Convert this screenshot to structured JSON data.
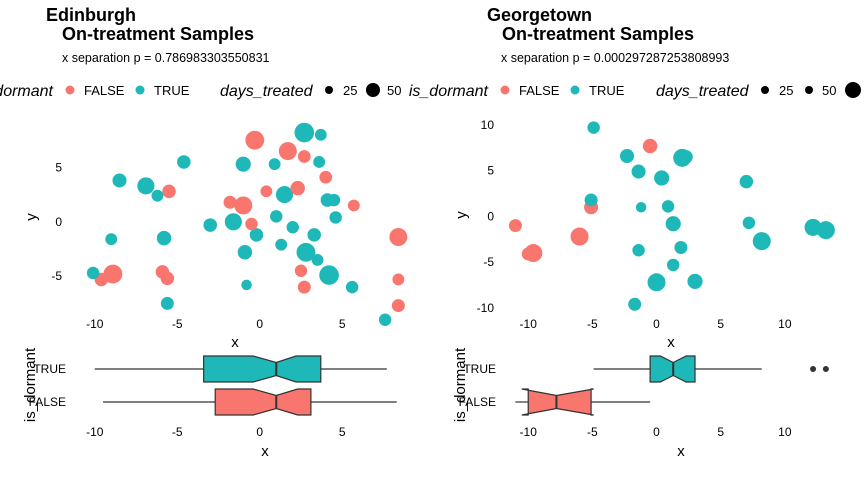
{
  "colors": {
    "false": "#F8766D",
    "true": "#1FB8B8"
  },
  "chart_data": [
    {
      "type": "scatter",
      "title": "Edinburgh",
      "subtitle": "On-treatment Samples",
      "annotation": "x separation p = 0.786983303550831",
      "xlabel": "x",
      "ylabel": "y",
      "xlim": [
        -11.5,
        8.5
      ],
      "ylim": [
        -9.3,
        10
      ],
      "x_ticks": [
        -10,
        -5,
        0,
        5
      ],
      "y_ticks": [
        -5,
        0,
        5
      ],
      "legend": {
        "color_title": "is_dormant",
        "color_labels": [
          "FALSE",
          "TRUE"
        ],
        "size_title": "days_treated",
        "size_labels": [
          "25",
          "50"
        ]
      },
      "points": [
        {
          "x": -0.3,
          "y": 7.5,
          "dormant": false,
          "days": 45
        },
        {
          "x": 1.7,
          "y": 6.5,
          "dormant": false,
          "days": 40
        },
        {
          "x": 2.7,
          "y": 8.2,
          "dormant": true,
          "days": 50
        },
        {
          "x": 3.7,
          "y": 8.0,
          "dormant": true,
          "days": 12
        },
        {
          "x": -4.6,
          "y": 5.5,
          "dormant": true,
          "days": 18
        },
        {
          "x": 2.7,
          "y": 6.0,
          "dormant": false,
          "days": 15
        },
        {
          "x": -1.0,
          "y": 5.3,
          "dormant": true,
          "days": 25
        },
        {
          "x": 0.9,
          "y": 5.3,
          "dormant": true,
          "days": 12
        },
        {
          "x": 3.6,
          "y": 5.5,
          "dormant": true,
          "days": 12
        },
        {
          "x": -8.5,
          "y": 3.8,
          "dormant": true,
          "days": 20
        },
        {
          "x": -6.9,
          "y": 3.3,
          "dormant": true,
          "days": 35
        },
        {
          "x": -5.5,
          "y": 2.8,
          "dormant": false,
          "days": 18
        },
        {
          "x": -6.2,
          "y": 2.4,
          "dormant": true,
          "days": 12
        },
        {
          "x": 0.4,
          "y": 2.8,
          "dormant": false,
          "days": 12
        },
        {
          "x": 2.3,
          "y": 3.1,
          "dormant": false,
          "days": 22
        },
        {
          "x": 4.0,
          "y": 4.1,
          "dormant": false,
          "days": 15
        },
        {
          "x": 1.5,
          "y": 2.5,
          "dormant": true,
          "days": 35
        },
        {
          "x": -1.8,
          "y": 1.8,
          "dormant": false,
          "days": 16
        },
        {
          "x": -1.0,
          "y": 1.5,
          "dormant": false,
          "days": 40
        },
        {
          "x": 4.1,
          "y": 2.0,
          "dormant": true,
          "days": 18
        },
        {
          "x": 4.5,
          "y": 2.0,
          "dormant": true,
          "days": 14
        },
        {
          "x": 5.7,
          "y": 1.5,
          "dormant": false,
          "days": 12
        },
        {
          "x": -1.6,
          "y": 0.0,
          "dormant": true,
          "days": 35
        },
        {
          "x": 1.0,
          "y": 0.5,
          "dormant": true,
          "days": 14
        },
        {
          "x": -0.5,
          "y": -0.2,
          "dormant": false,
          "days": 14
        },
        {
          "x": 4.6,
          "y": 0.4,
          "dormant": true,
          "days": 14
        },
        {
          "x": -3.0,
          "y": -0.3,
          "dormant": true,
          "days": 18
        },
        {
          "x": 2.0,
          "y": -0.5,
          "dormant": true,
          "days": 14
        },
        {
          "x": -0.2,
          "y": -1.2,
          "dormant": true,
          "days": 18
        },
        {
          "x": 3.3,
          "y": -1.2,
          "dormant": true,
          "days": 18
        },
        {
          "x": -9.0,
          "y": -1.6,
          "dormant": true,
          "days": 12
        },
        {
          "x": -5.8,
          "y": -1.5,
          "dormant": true,
          "days": 22
        },
        {
          "x": 8.4,
          "y": -1.4,
          "dormant": false,
          "days": 40
        },
        {
          "x": 1.3,
          "y": -2.1,
          "dormant": true,
          "days": 12
        },
        {
          "x": -0.9,
          "y": -2.8,
          "dormant": true,
          "days": 22
        },
        {
          "x": 2.8,
          "y": -2.8,
          "dormant": true,
          "days": 45
        },
        {
          "x": 3.5,
          "y": -3.5,
          "dormant": true,
          "days": 12
        },
        {
          "x": 2.5,
          "y": -4.5,
          "dormant": false,
          "days": 14
        },
        {
          "x": 4.2,
          "y": -4.9,
          "dormant": true,
          "days": 50
        },
        {
          "x": -10.1,
          "y": -4.7,
          "dormant": true,
          "days": 14
        },
        {
          "x": -9.6,
          "y": -5.3,
          "dormant": false,
          "days": 18
        },
        {
          "x": -8.9,
          "y": -4.8,
          "dormant": false,
          "days": 45
        },
        {
          "x": -5.9,
          "y": -4.6,
          "dormant": false,
          "days": 18
        },
        {
          "x": -5.6,
          "y": -5.2,
          "dormant": false,
          "days": 18
        },
        {
          "x": 8.4,
          "y": -5.3,
          "dormant": false,
          "days": 12
        },
        {
          "x": -0.8,
          "y": -5.8,
          "dormant": true,
          "days": 8
        },
        {
          "x": 2.7,
          "y": -6.0,
          "dormant": false,
          "days": 16
        },
        {
          "x": 5.6,
          "y": -6.0,
          "dormant": true,
          "days": 14
        },
        {
          "x": -5.6,
          "y": -7.5,
          "dormant": true,
          "days": 16
        },
        {
          "x": 8.4,
          "y": -7.7,
          "dormant": false,
          "days": 16
        },
        {
          "x": 7.6,
          "y": -9.0,
          "dormant": true,
          "days": 14
        }
      ],
      "boxplot": {
        "xlabel": "x",
        "ylabel": "is_dormant",
        "xlim": [
          -11.5,
          8.5
        ],
        "x_ticks": [
          -10,
          -5,
          0,
          5
        ],
        "groups": [
          {
            "label": "TRUE",
            "dormant": true,
            "min": -10.0,
            "q1": -3.4,
            "median": 1.0,
            "q3": 3.7,
            "max": 7.7,
            "notch": [
              -0.4,
              2.2
            ],
            "outliers": []
          },
          {
            "label": "FALSE",
            "dormant": false,
            "min": -9.5,
            "q1": -2.7,
            "median": 1.0,
            "q3": 3.1,
            "max": 8.3,
            "notch": [
              -0.4,
              2.3
            ],
            "outliers": []
          }
        ]
      }
    },
    {
      "type": "scatter",
      "title": "Georgetown",
      "subtitle": "On-treatment Samples",
      "annotation": "x separation p = 0.000297287253808993",
      "xlabel": "x",
      "ylabel": "y",
      "xlim": [
        -12.2,
        14.3
      ],
      "ylim": [
        -11.1,
        11.3
      ],
      "x_ticks": [
        -10,
        -5,
        0,
        5,
        10
      ],
      "y_ticks": [
        -10,
        -5,
        0,
        5,
        10
      ],
      "legend": {
        "color_title": "is_dormant",
        "color_labels": [
          "FALSE",
          "TRUE"
        ],
        "size_title": "days_treated",
        "size_labels": [
          "25",
          "50"
        ]
      },
      "points": [
        {
          "x": -4.9,
          "y": 9.7,
          "dormant": true,
          "days": 14
        },
        {
          "x": -0.5,
          "y": 7.7,
          "dormant": false,
          "days": 22
        },
        {
          "x": -2.3,
          "y": 6.6,
          "dormant": true,
          "days": 20
        },
        {
          "x": 2.0,
          "y": 6.4,
          "dormant": true,
          "days": 40
        },
        {
          "x": 2.3,
          "y": 6.5,
          "dormant": true,
          "days": 18
        },
        {
          "x": -1.4,
          "y": 4.9,
          "dormant": true,
          "days": 20
        },
        {
          "x": 0.4,
          "y": 4.2,
          "dormant": true,
          "days": 25
        },
        {
          "x": 7.0,
          "y": 3.8,
          "dormant": true,
          "days": 18
        },
        {
          "x": -5.1,
          "y": 1.8,
          "dormant": true,
          "days": 16
        },
        {
          "x": -5.1,
          "y": 1.0,
          "dormant": false,
          "days": 20
        },
        {
          "x": -1.2,
          "y": 1.0,
          "dormant": true,
          "days": 8
        },
        {
          "x": 0.9,
          "y": 1.1,
          "dormant": true,
          "days": 14
        },
        {
          "x": -11.0,
          "y": -1.0,
          "dormant": false,
          "days": 16
        },
        {
          "x": 1.3,
          "y": -0.8,
          "dormant": true,
          "days": 25
        },
        {
          "x": 7.2,
          "y": -0.7,
          "dormant": true,
          "days": 14
        },
        {
          "x": 12.2,
          "y": -1.2,
          "dormant": true,
          "days": 35
        },
        {
          "x": 13.2,
          "y": -1.5,
          "dormant": true,
          "days": 40
        },
        {
          "x": -6.0,
          "y": -2.2,
          "dormant": false,
          "days": 40
        },
        {
          "x": 8.2,
          "y": -2.7,
          "dormant": true,
          "days": 40
        },
        {
          "x": 1.9,
          "y": -3.4,
          "dormant": true,
          "days": 16
        },
        {
          "x": -1.4,
          "y": -3.7,
          "dormant": true,
          "days": 14
        },
        {
          "x": -10.0,
          "y": -4.1,
          "dormant": false,
          "days": 16
        },
        {
          "x": -9.6,
          "y": -4.0,
          "dormant": false,
          "days": 40
        },
        {
          "x": 1.3,
          "y": -5.3,
          "dormant": true,
          "days": 14
        },
        {
          "x": 0.0,
          "y": -7.2,
          "dormant": true,
          "days": 40
        },
        {
          "x": 3.0,
          "y": -7.1,
          "dormant": true,
          "days": 25
        },
        {
          "x": -1.7,
          "y": -9.6,
          "dormant": true,
          "days": 16
        }
      ],
      "boxplot": {
        "xlabel": "x",
        "ylabel": "is_dormant",
        "xlim": [
          -12.2,
          14.3
        ],
        "x_ticks": [
          -10,
          -5,
          0,
          5,
          10
        ],
        "groups": [
          {
            "label": "TRUE",
            "dormant": true,
            "min": -4.9,
            "q1": -0.5,
            "median": 1.3,
            "q3": 3.0,
            "max": 8.2,
            "notch": [
              0.3,
              2.3
            ],
            "outliers": [
              12.2,
              13.2
            ]
          },
          {
            "label": "FALSE",
            "dormant": false,
            "min": -11.0,
            "q1": -10.0,
            "median": -7.8,
            "q3": -5.1,
            "max": -0.5,
            "notch": [
              -10.5,
              -4.9
            ],
            "outliers": []
          }
        ]
      }
    }
  ]
}
